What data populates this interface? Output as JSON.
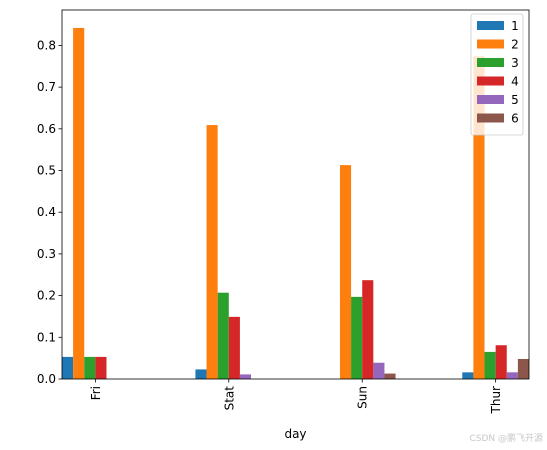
{
  "chart_data": {
    "type": "bar",
    "title": "",
    "xlabel": "day",
    "ylabel": "",
    "categories": [
      "Fri",
      "Stat",
      "Sun",
      "Thur"
    ],
    "ylim": [
      0,
      0.885
    ],
    "yticks": [
      "0.0",
      "0.1",
      "0.2",
      "0.3",
      "0.4",
      "0.5",
      "0.6",
      "0.7",
      "0.8"
    ],
    "legend_position": "top-right",
    "grid": false,
    "series": [
      {
        "name": "1",
        "color": "#1f77b4",
        "values": [
          0.053,
          0.023,
          0.0,
          0.016
        ]
      },
      {
        "name": "2",
        "color": "#ff7f0e",
        "values": [
          0.842,
          0.609,
          0.513,
          0.774
        ]
      },
      {
        "name": "3",
        "color": "#2ca02c",
        "values": [
          0.053,
          0.207,
          0.197,
          0.065
        ]
      },
      {
        "name": "4",
        "color": "#d62728",
        "values": [
          0.053,
          0.149,
          0.237,
          0.081
        ]
      },
      {
        "name": "5",
        "color": "#9467bd",
        "values": [
          0.0,
          0.011,
          0.039,
          0.016
        ]
      },
      {
        "name": "6",
        "color": "#8c564b",
        "values": [
          0.0,
          0.0,
          0.013,
          0.048
        ]
      }
    ]
  },
  "watermark": "CSDN @鹏飞开源"
}
